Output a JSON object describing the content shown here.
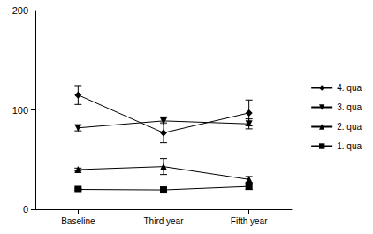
{
  "chart_data": {
    "type": "line",
    "categories": [
      "Baseline",
      "Third year",
      "Fifth year"
    ],
    "ylim": [
      0,
      200
    ],
    "yticks": [
      0,
      100,
      200
    ],
    "grid": false,
    "legend": "right",
    "series": [
      {
        "name": "4. qua",
        "color": "#000000",
        "marker": "diamond",
        "values": [
          115,
          77,
          97
        ],
        "errors": [
          9.5,
          10,
          13
        ]
      },
      {
        "name": "3. qua",
        "color": "#000000",
        "marker": "triangle-down",
        "values": [
          82,
          89,
          86
        ],
        "errors": [
          3,
          4,
          5
        ]
      },
      {
        "name": "2. qua",
        "color": "#000000",
        "marker": "triangle",
        "values": [
          40,
          43,
          30
        ],
        "errors": [
          1.5,
          8,
          3
        ]
      },
      {
        "name": "1. qua",
        "color": "#000000",
        "marker": "square",
        "values": [
          20,
          19.5,
          23
        ],
        "errors": [
          1,
          1,
          3
        ]
      }
    ]
  }
}
